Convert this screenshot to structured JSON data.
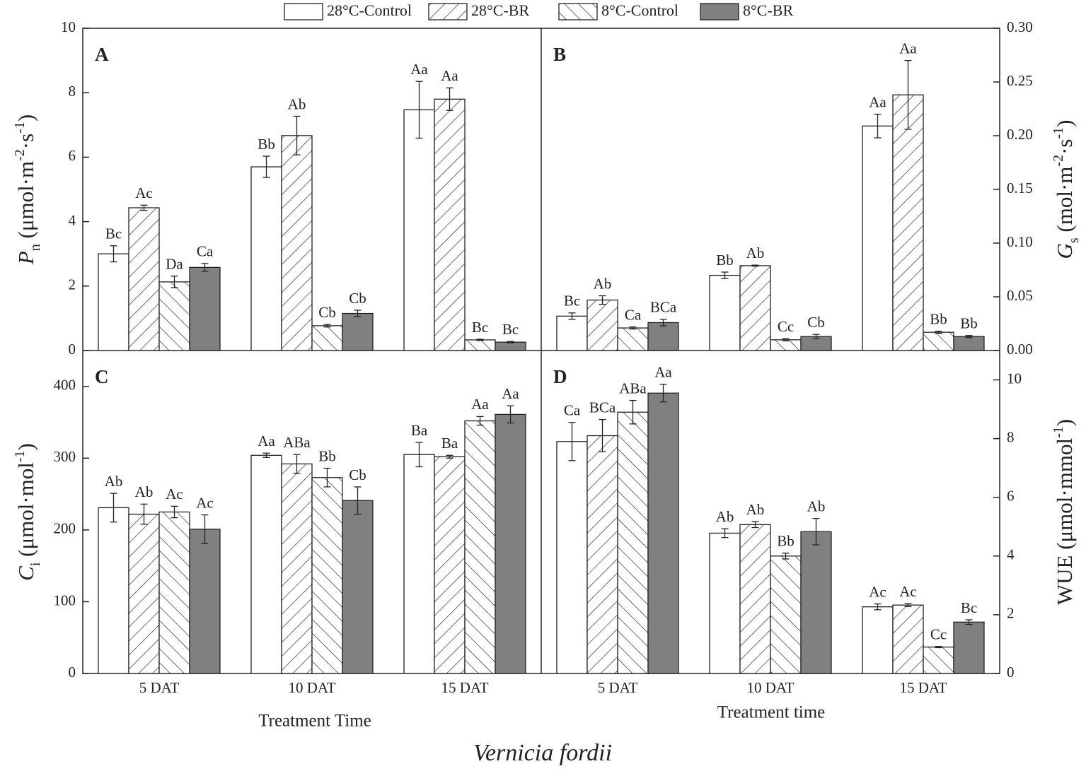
{
  "legend": [
    {
      "name": "28°C-Control",
      "fill": "#ffffff",
      "pattern": "none"
    },
    {
      "name": "28°C-BR",
      "fill": "#ffffff",
      "pattern": "forward"
    },
    {
      "name": "8°C-Control",
      "fill": "#ffffff",
      "pattern": "backward"
    },
    {
      "name": "8°C-BR",
      "fill": "#808080",
      "pattern": "none"
    }
  ],
  "caption": "Vernicia fordii",
  "chart_data": [
    {
      "type": "bar",
      "label": "A",
      "axis_side": "left",
      "ylabel": [
        [
          "P",
          "italic"
        ],
        [
          "n",
          "sub"
        ],
        [
          " (μmol·m",
          "normal"
        ],
        [
          "-2",
          "sup"
        ],
        [
          "·s",
          "normal"
        ],
        [
          "-1",
          "sup"
        ],
        [
          ")",
          "normal"
        ]
      ],
      "ylim": [
        0,
        10
      ],
      "yticks": [
        0,
        2,
        4,
        6,
        8,
        10
      ],
      "series": [
        {
          "values": [
            3.0,
            5.7,
            7.47
          ],
          "errors": [
            0.25,
            0.33,
            0.88
          ],
          "letters": [
            "Bc",
            "Bb",
            "Aa"
          ]
        },
        {
          "values": [
            4.43,
            6.67,
            7.8
          ],
          "errors": [
            0.08,
            0.6,
            0.35
          ],
          "letters": [
            "Ac",
            "Ab",
            "Aa"
          ]
        },
        {
          "values": [
            2.13,
            0.77,
            0.33
          ],
          "errors": [
            0.18,
            0.04,
            0.02
          ],
          "letters": [
            "Da",
            "Cb",
            "Bc"
          ]
        },
        {
          "values": [
            2.58,
            1.15,
            0.26
          ],
          "errors": [
            0.12,
            0.1,
            0.02
          ],
          "letters": [
            "Ca",
            "Cb",
            "Bc"
          ]
        }
      ]
    },
    {
      "type": "bar",
      "label": "B",
      "axis_side": "right",
      "ylabel": [
        [
          "G",
          "italic"
        ],
        [
          "s",
          "sub"
        ],
        [
          " (mol·m",
          "normal"
        ],
        [
          "-2",
          "sup"
        ],
        [
          "·s",
          "normal"
        ],
        [
          "-1",
          "sup"
        ],
        [
          ")",
          "normal"
        ]
      ],
      "ylim": [
        0,
        0.3
      ],
      "yticks": [
        {
          "value": 0,
          "label": "0.00"
        },
        {
          "value": 0.05,
          "label": "0.05"
        },
        {
          "value": 0.1,
          "label": "0.10"
        },
        {
          "value": 0.15,
          "label": "0.15"
        },
        {
          "value": 0.2,
          "label": "0.20"
        },
        {
          "value": 0.25,
          "label": "0.25"
        },
        {
          "value": 0.3,
          "label": "0.30"
        }
      ],
      "series": [
        {
          "values": [
            0.032,
            0.07,
            0.209
          ],
          "errors": [
            0.003,
            0.003,
            0.011
          ],
          "letters": [
            "Bc",
            "Bb",
            "Aa"
          ]
        },
        {
          "values": [
            0.047,
            0.079,
            0.238
          ],
          "errors": [
            0.004,
            0.0005,
            0.032
          ],
          "letters": [
            "Ab",
            "Ab",
            "Aa"
          ]
        },
        {
          "values": [
            0.021,
            0.01,
            0.017
          ],
          "errors": [
            0.001,
            0.001,
            0.001
          ],
          "letters": [
            "Ca",
            "Cc",
            "Bb"
          ]
        },
        {
          "values": [
            0.026,
            0.013,
            0.013
          ],
          "errors": [
            0.003,
            0.002,
            0.001
          ],
          "letters": [
            "BCa",
            "Cb",
            "Bb"
          ]
        }
      ]
    },
    {
      "type": "bar",
      "label": "C",
      "axis_side": "left",
      "ylabel": [
        [
          "C",
          "italic"
        ],
        [
          "i",
          "sub"
        ],
        [
          " (μmol·mol",
          "normal"
        ],
        [
          "-1",
          "sup"
        ],
        [
          ")",
          "normal"
        ]
      ],
      "ylim": [
        0,
        450
      ],
      "yticks": [
        0,
        100,
        200,
        300,
        400
      ],
      "categories": [
        "5 DAT",
        "10 DAT",
        "15 DAT"
      ],
      "xlabel": "Treatment Time",
      "series": [
        {
          "values": [
            231,
            304,
            305
          ],
          "errors": [
            20,
            3,
            17
          ],
          "letters": [
            "Ab",
            "Aa",
            "Ba"
          ]
        },
        {
          "values": [
            222,
            292,
            302
          ],
          "errors": [
            14,
            13,
            2
          ],
          "letters": [
            "Ab",
            "ABa",
            "Ba"
          ]
        },
        {
          "values": [
            225,
            273,
            352
          ],
          "errors": [
            8,
            13,
            6
          ],
          "letters": [
            "Ac",
            "Bb",
            "Aa"
          ]
        },
        {
          "values": [
            201,
            241,
            361
          ],
          "errors": [
            20,
            19,
            12
          ],
          "letters": [
            "Ac",
            "Cb",
            "Aa"
          ]
        }
      ]
    },
    {
      "type": "bar",
      "label": "D",
      "axis_side": "right",
      "ylabel": [
        [
          "WUE (μmol·mmol",
          "normal"
        ],
        [
          "-1",
          "sup"
        ],
        [
          ")",
          "normal"
        ]
      ],
      "ylim": [
        0,
        11
      ],
      "yticks": [
        0,
        2,
        4,
        6,
        8,
        10
      ],
      "categories": [
        "5 DAT",
        "10 DAT",
        "15 DAT"
      ],
      "xlabel": "Treatment time",
      "series": [
        {
          "values": [
            7.9,
            4.78,
            2.27
          ],
          "errors": [
            0.65,
            0.15,
            0.1
          ],
          "letters": [
            "Ca",
            "Ab",
            "Ac"
          ]
        },
        {
          "values": [
            8.1,
            5.07,
            2.33
          ],
          "errors": [
            0.55,
            0.1,
            0.05
          ],
          "letters": [
            "BCa",
            "Ab",
            "Ac"
          ]
        },
        {
          "values": [
            8.9,
            4.0,
            0.9
          ],
          "errors": [
            0.4,
            0.1,
            0.02
          ],
          "letters": [
            "ABa",
            "Bb",
            "Cc"
          ]
        },
        {
          "values": [
            9.55,
            4.83,
            1.75
          ],
          "errors": [
            0.3,
            0.45,
            0.08
          ],
          "letters": [
            "Aa",
            "Ab",
            "Bc"
          ]
        }
      ]
    }
  ]
}
